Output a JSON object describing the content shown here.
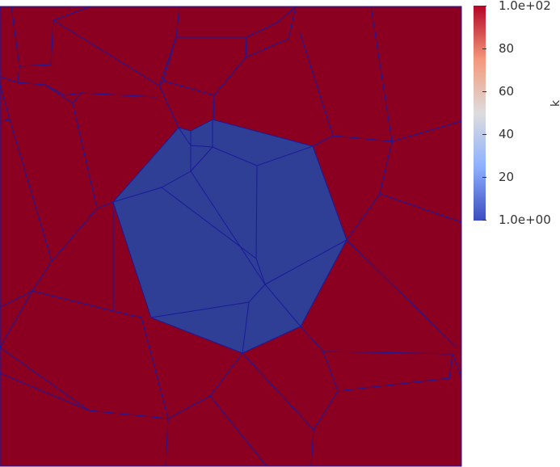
{
  "colorbar": {
    "title": "k",
    "range": [
      1.0,
      100.0
    ],
    "labels": [
      "1.0e+02",
      "80",
      "60",
      "40",
      "20",
      "1.0e+00"
    ],
    "colormap": "Cool to Warm",
    "colors": {
      "low": "#3b4cc0",
      "mid": "#dddddd",
      "high": "#b40426"
    }
  },
  "mesh": {
    "high_cell_color": "#8b0020",
    "low_cell_color": "#2f3f95",
    "edge_color": "#1a1a9a"
  }
}
